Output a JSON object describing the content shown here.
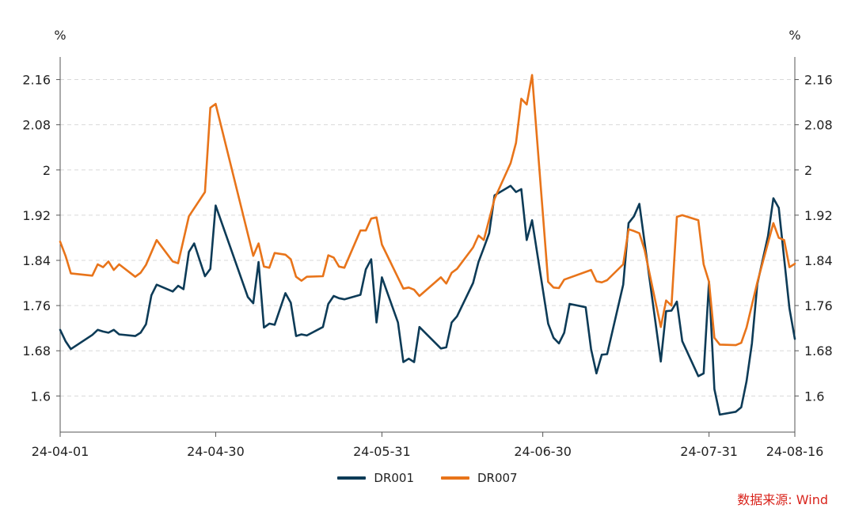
{
  "chart_data": {
    "type": "line",
    "unit_left": "%",
    "unit_right": "%",
    "ylim": [
      1.536,
      2.2
    ],
    "y_ticks": [
      "1.6",
      "1.68",
      "1.76",
      "1.84",
      "1.92",
      "2",
      "2.08",
      "2.16"
    ],
    "y_tick_values": [
      1.6,
      1.68,
      1.76,
      1.84,
      1.92,
      2.0,
      2.08,
      2.16
    ],
    "x_ticks": [
      "24-04-01",
      "24-04-30",
      "24-05-31",
      "24-06-30",
      "24-07-31",
      "24-08-16"
    ],
    "x_tick_values": [
      "2024-04-01",
      "2024-04-30",
      "2024-05-31",
      "2024-06-30",
      "2024-07-31",
      "2024-08-16"
    ],
    "xlim": [
      "2024-04-01",
      "2024-08-16"
    ],
    "grid": "horizontal-dashed",
    "legend_position": "bottom-center",
    "series": [
      {
        "name": "DR001",
        "color": "#0d3b57",
        "points": [
          [
            "2024-04-01",
            1.717
          ],
          [
            "2024-04-02",
            1.697
          ],
          [
            "2024-04-03",
            1.683
          ],
          [
            "2024-04-07",
            1.708
          ],
          [
            "2024-04-08",
            1.717
          ],
          [
            "2024-04-09",
            1.714
          ],
          [
            "2024-04-10",
            1.712
          ],
          [
            "2024-04-11",
            1.717
          ],
          [
            "2024-04-12",
            1.709
          ],
          [
            "2024-04-15",
            1.706
          ],
          [
            "2024-04-16",
            1.712
          ],
          [
            "2024-04-17",
            1.727
          ],
          [
            "2024-04-18",
            1.778
          ],
          [
            "2024-04-19",
            1.797
          ],
          [
            "2024-04-22",
            1.785
          ],
          [
            "2024-04-23",
            1.795
          ],
          [
            "2024-04-24",
            1.789
          ],
          [
            "2024-04-25",
            1.855
          ],
          [
            "2024-04-26",
            1.87
          ],
          [
            "2024-04-28",
            1.812
          ],
          [
            "2024-04-29",
            1.825
          ],
          [
            "2024-04-30",
            1.937
          ],
          [
            "2024-05-06",
            1.775
          ],
          [
            "2024-05-07",
            1.764
          ],
          [
            "2024-05-08",
            1.837
          ],
          [
            "2024-05-09",
            1.721
          ],
          [
            "2024-05-10",
            1.728
          ],
          [
            "2024-05-11",
            1.726
          ],
          [
            "2024-05-13",
            1.782
          ],
          [
            "2024-05-14",
            1.765
          ],
          [
            "2024-05-15",
            1.706
          ],
          [
            "2024-05-16",
            1.709
          ],
          [
            "2024-05-17",
            1.707
          ],
          [
            "2024-05-20",
            1.722
          ],
          [
            "2024-05-21",
            1.763
          ],
          [
            "2024-05-22",
            1.777
          ],
          [
            "2024-05-23",
            1.773
          ],
          [
            "2024-05-24",
            1.771
          ],
          [
            "2024-05-27",
            1.779
          ],
          [
            "2024-05-28",
            1.824
          ],
          [
            "2024-05-29",
            1.842
          ],
          [
            "2024-05-30",
            1.73
          ],
          [
            "2024-05-31",
            1.81
          ],
          [
            "2024-06-03",
            1.73
          ],
          [
            "2024-06-04",
            1.66
          ],
          [
            "2024-06-05",
            1.666
          ],
          [
            "2024-06-06",
            1.66
          ],
          [
            "2024-06-07",
            1.722
          ],
          [
            "2024-06-11",
            1.684
          ],
          [
            "2024-06-12",
            1.686
          ],
          [
            "2024-06-13",
            1.73
          ],
          [
            "2024-06-14",
            1.741
          ],
          [
            "2024-06-17",
            1.8
          ],
          [
            "2024-06-18",
            1.837
          ],
          [
            "2024-06-19",
            1.862
          ],
          [
            "2024-06-20",
            1.888
          ],
          [
            "2024-06-21",
            1.955
          ],
          [
            "2024-06-24",
            1.972
          ],
          [
            "2024-06-25",
            1.961
          ],
          [
            "2024-06-26",
            1.966
          ],
          [
            "2024-06-27",
            1.876
          ],
          [
            "2024-06-28",
            1.911
          ],
          [
            "2024-07-01",
            1.728
          ],
          [
            "2024-07-02",
            1.703
          ],
          [
            "2024-07-03",
            1.693
          ],
          [
            "2024-07-04",
            1.712
          ],
          [
            "2024-07-05",
            1.763
          ],
          [
            "2024-07-08",
            1.757
          ],
          [
            "2024-07-09",
            1.683
          ],
          [
            "2024-07-10",
            1.64
          ],
          [
            "2024-07-11",
            1.673
          ],
          [
            "2024-07-12",
            1.674
          ],
          [
            "2024-07-15",
            1.797
          ],
          [
            "2024-07-16",
            1.906
          ],
          [
            "2024-07-17",
            1.918
          ],
          [
            "2024-07-18",
            1.94
          ],
          [
            "2024-07-22",
            1.661
          ],
          [
            "2024-07-23",
            1.75
          ],
          [
            "2024-07-24",
            1.751
          ],
          [
            "2024-07-25",
            1.767
          ],
          [
            "2024-07-26",
            1.697
          ],
          [
            "2024-07-29",
            1.635
          ],
          [
            "2024-07-30",
            1.64
          ],
          [
            "2024-07-31",
            1.802
          ],
          [
            "2024-08-01",
            1.612
          ],
          [
            "2024-08-02",
            1.567
          ],
          [
            "2024-08-05",
            1.572
          ],
          [
            "2024-08-06",
            1.58
          ],
          [
            "2024-08-07",
            1.626
          ],
          [
            "2024-08-08",
            1.693
          ],
          [
            "2024-08-09",
            1.798
          ],
          [
            "2024-08-11",
            1.883
          ],
          [
            "2024-08-12",
            1.95
          ],
          [
            "2024-08-13",
            1.933
          ],
          [
            "2024-08-15",
            1.755
          ],
          [
            "2024-08-16",
            1.701
          ]
        ]
      },
      {
        "name": "DR007",
        "color": "#e8741a",
        "points": [
          [
            "2024-04-01",
            1.873
          ],
          [
            "2024-04-02",
            1.848
          ],
          [
            "2024-04-03",
            1.817
          ],
          [
            "2024-04-07",
            1.813
          ],
          [
            "2024-04-08",
            1.833
          ],
          [
            "2024-04-09",
            1.828
          ],
          [
            "2024-04-10",
            1.838
          ],
          [
            "2024-04-11",
            1.823
          ],
          [
            "2024-04-12",
            1.833
          ],
          [
            "2024-04-15",
            1.811
          ],
          [
            "2024-04-16",
            1.818
          ],
          [
            "2024-04-17",
            1.832
          ],
          [
            "2024-04-19",
            1.876
          ],
          [
            "2024-04-22",
            1.838
          ],
          [
            "2024-04-23",
            1.835
          ],
          [
            "2024-04-25",
            1.918
          ],
          [
            "2024-04-28",
            1.961
          ],
          [
            "2024-04-29",
            2.11
          ],
          [
            "2024-04-30",
            2.117
          ],
          [
            "2024-05-07",
            1.848
          ],
          [
            "2024-05-08",
            1.87
          ],
          [
            "2024-05-09",
            1.829
          ],
          [
            "2024-05-10",
            1.827
          ],
          [
            "2024-05-11",
            1.853
          ],
          [
            "2024-05-13",
            1.85
          ],
          [
            "2024-05-14",
            1.842
          ],
          [
            "2024-05-15",
            1.811
          ],
          [
            "2024-05-16",
            1.804
          ],
          [
            "2024-05-17",
            1.811
          ],
          [
            "2024-05-20",
            1.812
          ],
          [
            "2024-05-21",
            1.849
          ],
          [
            "2024-05-22",
            1.845
          ],
          [
            "2024-05-23",
            1.829
          ],
          [
            "2024-05-24",
            1.827
          ],
          [
            "2024-05-27",
            1.893
          ],
          [
            "2024-05-28",
            1.893
          ],
          [
            "2024-05-29",
            1.914
          ],
          [
            "2024-05-30",
            1.916
          ],
          [
            "2024-05-31",
            1.868
          ],
          [
            "2024-06-04",
            1.79
          ],
          [
            "2024-06-05",
            1.792
          ],
          [
            "2024-06-06",
            1.788
          ],
          [
            "2024-06-07",
            1.777
          ],
          [
            "2024-06-11",
            1.81
          ],
          [
            "2024-06-12",
            1.799
          ],
          [
            "2024-06-13",
            1.818
          ],
          [
            "2024-06-14",
            1.825
          ],
          [
            "2024-06-17",
            1.863
          ],
          [
            "2024-06-18",
            1.884
          ],
          [
            "2024-06-19",
            1.876
          ],
          [
            "2024-06-21",
            1.949
          ],
          [
            "2024-06-24",
            2.012
          ],
          [
            "2024-06-25",
            2.048
          ],
          [
            "2024-06-26",
            2.126
          ],
          [
            "2024-06-27",
            2.116
          ],
          [
            "2024-06-28",
            2.168
          ],
          [
            "2024-07-01",
            1.802
          ],
          [
            "2024-07-02",
            1.792
          ],
          [
            "2024-07-03",
            1.791
          ],
          [
            "2024-07-04",
            1.806
          ],
          [
            "2024-07-09",
            1.823
          ],
          [
            "2024-07-10",
            1.803
          ],
          [
            "2024-07-11",
            1.801
          ],
          [
            "2024-07-12",
            1.805
          ],
          [
            "2024-07-15",
            1.833
          ],
          [
            "2024-07-16",
            1.895
          ],
          [
            "2024-07-17",
            1.892
          ],
          [
            "2024-07-18",
            1.888
          ],
          [
            "2024-07-19",
            1.858
          ],
          [
            "2024-07-22",
            1.722
          ],
          [
            "2024-07-23",
            1.769
          ],
          [
            "2024-07-24",
            1.76
          ],
          [
            "2024-07-25",
            1.917
          ],
          [
            "2024-07-26",
            1.92
          ],
          [
            "2024-07-29",
            1.911
          ],
          [
            "2024-07-30",
            1.833
          ],
          [
            "2024-07-31",
            1.802
          ],
          [
            "2024-08-01",
            1.703
          ],
          [
            "2024-08-02",
            1.691
          ],
          [
            "2024-08-05",
            1.69
          ],
          [
            "2024-08-06",
            1.694
          ],
          [
            "2024-08-07",
            1.721
          ],
          [
            "2024-08-09",
            1.801
          ],
          [
            "2024-08-12",
            1.906
          ],
          [
            "2024-08-13",
            1.88
          ],
          [
            "2024-08-14",
            1.876
          ],
          [
            "2024-08-15",
            1.828
          ],
          [
            "2024-08-16",
            1.834
          ]
        ]
      }
    ]
  },
  "legend": {
    "items": [
      {
        "label": "DR001",
        "color": "#0d3b57"
      },
      {
        "label": "DR007",
        "color": "#e8741a"
      }
    ]
  },
  "source": "数据来源: Wind"
}
